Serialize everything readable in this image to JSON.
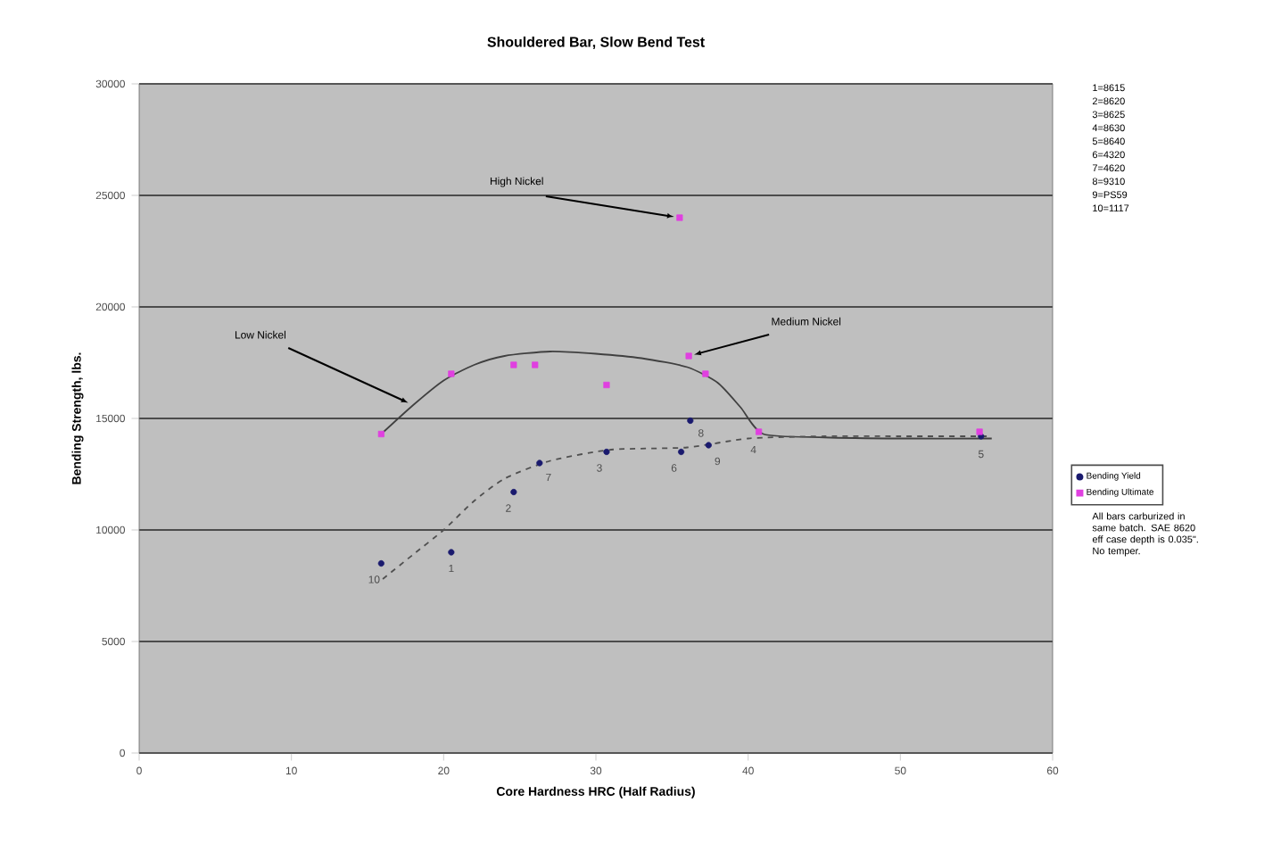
{
  "chart_data": {
    "type": "scatter",
    "title": "Shouldered Bar, Slow Bend Test",
    "xlabel": "Core Hardness HRC (Half Radius)",
    "ylabel": "Bending Strength, lbs.",
    "xlim": [
      0,
      60
    ],
    "xticks": [
      0,
      10,
      20,
      30,
      40,
      50,
      60
    ],
    "ylim": [
      0,
      30000
    ],
    "yticks": [
      0,
      5000,
      10000,
      15000,
      20000,
      25000,
      30000
    ],
    "grid": "y",
    "legend": "right",
    "series": [
      {
        "name": "Bending Yield",
        "color": "#1a1a6e",
        "marker": "circle",
        "x": [
          15.9,
          20.5,
          24.6,
          26.3,
          30.7,
          35.6,
          36.2,
          37.4,
          55.3
        ],
        "values": [
          8500,
          9000,
          11700,
          13000,
          13500,
          13500,
          14900,
          13800,
          14200
        ]
      },
      {
        "name": "Bending Ultimate",
        "color": "#e040e0",
        "marker": "square",
        "x": [
          15.9,
          20.5,
          24.6,
          26.0,
          30.7,
          35.5,
          36.1,
          37.2,
          40.7,
          55.2
        ],
        "values": [
          14300,
          17000,
          17400,
          17400,
          16500,
          24000,
          17800,
          17000,
          14400,
          14400
        ]
      },
      {
        "type": "line",
        "color": "#404040",
        "line_style": "solid",
        "marker": "none",
        "x": [
          15.9,
          18,
          20,
          22,
          24,
          27,
          30,
          33,
          36,
          38,
          39.5,
          41,
          45,
          50,
          56
        ],
        "values": [
          14300,
          15600,
          16700,
          17400,
          17800,
          18000,
          17900,
          17700,
          17300,
          16600,
          15500,
          14300,
          14150,
          14100,
          14100
        ]
      },
      {
        "type": "line",
        "color": "#505050",
        "line_style": "dashed",
        "marker": "none",
        "x": [
          16,
          18,
          20,
          22,
          24,
          27,
          31,
          36,
          40,
          45,
          50,
          56
        ],
        "values": [
          7800,
          8900,
          10000,
          11300,
          12300,
          13100,
          13600,
          13700,
          14100,
          14200,
          14200,
          14200
        ]
      }
    ],
    "annotations": [
      {
        "text": "High Nickel",
        "x": 35.5,
        "y": 24000
      },
      {
        "text": "Low Nickel",
        "x": 18,
        "y": 15600
      },
      {
        "text": "Medium Nickel",
        "x": 36.1,
        "y": 17800
      },
      {
        "text": "10",
        "x": 15.9,
        "y": 8500
      },
      {
        "text": "1",
        "x": 20.5,
        "y": 9000
      },
      {
        "text": "2",
        "x": 24.6,
        "y": 11700
      },
      {
        "text": "7",
        "x": 26.3,
        "y": 13000
      },
      {
        "text": "3",
        "x": 30.7,
        "y": 13500
      },
      {
        "text": "6",
        "x": 35.6,
        "y": 13500
      },
      {
        "text": "9",
        "x": 37.4,
        "y": 13800
      },
      {
        "text": "8",
        "x": 36.2,
        "y": 14900
      },
      {
        "text": "4",
        "x": 40.7,
        "y": 14400
      },
      {
        "text": "5",
        "x": 55.3,
        "y": 14200
      },
      "1=8615",
      "2=8620",
      "3=8625",
      "4=8630",
      "5=8640",
      "6=4320",
      "7=4620",
      "8=9310",
      "9=PS59",
      "10=1117",
      "All bars carburized in same batch. SAE 8620 eff case depth is 0.035\". No temper."
    ]
  }
}
